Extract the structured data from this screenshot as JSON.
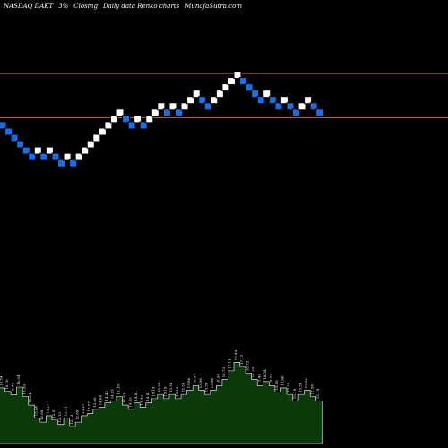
{
  "header": {
    "symbol": "NASDAQ DAKT",
    "change": "3%",
    "closing": "Closing",
    "chart_kind": "Daily data Renko charts",
    "site": "MunafaSutra.com"
  },
  "colors": {
    "background": "#000000",
    "up_brick": "#ffffff",
    "down_brick": "#1a6ee8",
    "brick_border": "#000000",
    "level_line": "#b5651d",
    "volume_fill": "#0a3a0a",
    "volume_stroke": "#ffffff",
    "volume_label": "#ffffff"
  },
  "chart_data": {
    "type": "renko",
    "ylim": [
      0,
      22
    ],
    "levels": [
      18.3,
      14.8
    ],
    "bricks": [
      {
        "level": 14.2,
        "dir": "down"
      },
      {
        "level": 13.7,
        "dir": "down"
      },
      {
        "level": 13.2,
        "dir": "down"
      },
      {
        "level": 12.7,
        "dir": "down"
      },
      {
        "level": 12.2,
        "dir": "down"
      },
      {
        "level": 11.7,
        "dir": "down"
      },
      {
        "level": 12.2,
        "dir": "up"
      },
      {
        "level": 11.7,
        "dir": "down"
      },
      {
        "level": 12.2,
        "dir": "up"
      },
      {
        "level": 11.7,
        "dir": "down"
      },
      {
        "level": 11.2,
        "dir": "down"
      },
      {
        "level": 11.7,
        "dir": "up"
      },
      {
        "level": 11.2,
        "dir": "down"
      },
      {
        "level": 11.7,
        "dir": "up"
      },
      {
        "level": 12.2,
        "dir": "up"
      },
      {
        "level": 12.7,
        "dir": "up"
      },
      {
        "level": 13.2,
        "dir": "up"
      },
      {
        "level": 13.7,
        "dir": "up"
      },
      {
        "level": 14.2,
        "dir": "up"
      },
      {
        "level": 14.7,
        "dir": "up"
      },
      {
        "level": 15.2,
        "dir": "up"
      },
      {
        "level": 14.7,
        "dir": "down"
      },
      {
        "level": 14.2,
        "dir": "down"
      },
      {
        "level": 14.7,
        "dir": "up"
      },
      {
        "level": 14.2,
        "dir": "down"
      },
      {
        "level": 14.7,
        "dir": "up"
      },
      {
        "level": 15.2,
        "dir": "up"
      },
      {
        "level": 15.7,
        "dir": "up"
      },
      {
        "level": 15.2,
        "dir": "down"
      },
      {
        "level": 15.7,
        "dir": "up"
      },
      {
        "level": 15.2,
        "dir": "down"
      },
      {
        "level": 15.7,
        "dir": "up"
      },
      {
        "level": 16.2,
        "dir": "up"
      },
      {
        "level": 16.7,
        "dir": "up"
      },
      {
        "level": 16.2,
        "dir": "down"
      },
      {
        "level": 15.7,
        "dir": "down"
      },
      {
        "level": 16.2,
        "dir": "up"
      },
      {
        "level": 16.7,
        "dir": "up"
      },
      {
        "level": 17.2,
        "dir": "up"
      },
      {
        "level": 17.7,
        "dir": "up"
      },
      {
        "level": 18.2,
        "dir": "up"
      },
      {
        "level": 17.7,
        "dir": "down"
      },
      {
        "level": 17.2,
        "dir": "down"
      },
      {
        "level": 16.7,
        "dir": "down"
      },
      {
        "level": 16.2,
        "dir": "down"
      },
      {
        "level": 16.7,
        "dir": "up"
      },
      {
        "level": 16.2,
        "dir": "down"
      },
      {
        "level": 15.7,
        "dir": "down"
      },
      {
        "level": 16.2,
        "dir": "up"
      },
      {
        "level": 15.7,
        "dir": "down"
      },
      {
        "level": 15.2,
        "dir": "down"
      },
      {
        "level": 15.7,
        "dir": "up"
      },
      {
        "level": 16.2,
        "dir": "up"
      },
      {
        "level": 15.7,
        "dir": "down"
      },
      {
        "level": 15.2,
        "dir": "down"
      }
    ],
    "volume": [
      {
        "v": 13.0,
        "label": "16.54"
      },
      {
        "v": 12.2,
        "label": "16.16"
      },
      {
        "v": 11.4,
        "label": "15.77"
      },
      {
        "v": 13.2,
        "label": "16.54"
      },
      {
        "v": 11.0,
        "label": "15.39"
      },
      {
        "v": 9.0,
        "label": "14.24"
      },
      {
        "v": 6.0,
        "label": "13.66"
      },
      {
        "v": 5.0,
        "label": "12.89"
      },
      {
        "v": 6.5,
        "label": "13.27"
      },
      {
        "v": 5.5,
        "label": "12.51"
      },
      {
        "v": 4.5,
        "label": "12.13"
      },
      {
        "v": 6.0,
        "label": "12.51"
      },
      {
        "v": 4.0,
        "label": "12.13"
      },
      {
        "v": 5.0,
        "label": "12.89"
      },
      {
        "v": 6.5,
        "label": "13.27"
      },
      {
        "v": 7.0,
        "label": "13.27"
      },
      {
        "v": 8.0,
        "label": "13.66"
      },
      {
        "v": 8.5,
        "label": "14.04"
      },
      {
        "v": 9.5,
        "label": "14.42"
      },
      {
        "v": 10.0,
        "label": "14.81"
      },
      {
        "v": 11.0,
        "label": "15.19"
      },
      {
        "v": 9.0,
        "label": "14.81"
      },
      {
        "v": 8.0,
        "label": "14.42"
      },
      {
        "v": 9.5,
        "label": "14.81"
      },
      {
        "v": 8.5,
        "label": "14.42"
      },
      {
        "v": 9.5,
        "label": "14.81"
      },
      {
        "v": 10.5,
        "label": "15.19"
      },
      {
        "v": 11.5,
        "label": "15.58"
      },
      {
        "v": 10.5,
        "label": "15.19"
      },
      {
        "v": 11.5,
        "label": "15.58"
      },
      {
        "v": 10.5,
        "label": "15.19"
      },
      {
        "v": 11.5,
        "label": "15.58"
      },
      {
        "v": 12.5,
        "label": "15.96"
      },
      {
        "v": 13.5,
        "label": "16.34"
      },
      {
        "v": 12.5,
        "label": "15.96"
      },
      {
        "v": 11.5,
        "label": "15.58"
      },
      {
        "v": 12.5,
        "label": "15.96"
      },
      {
        "v": 13.5,
        "label": "16.34"
      },
      {
        "v": 15.0,
        "label": "16.73"
      },
      {
        "v": 17.0,
        "label": "17.11"
      },
      {
        "v": 19.0,
        "label": "17.49"
      },
      {
        "v": 18.0,
        "label": "17.11"
      },
      {
        "v": 16.5,
        "label": "16.73"
      },
      {
        "v": 15.0,
        "label": "16.34"
      },
      {
        "v": 13.5,
        "label": "15.96"
      },
      {
        "v": 14.5,
        "label": "16.34"
      },
      {
        "v": 13.5,
        "label": "15.96"
      },
      {
        "v": 12.0,
        "label": "15.58"
      },
      {
        "v": 13.0,
        "label": "15.96"
      },
      {
        "v": 11.5,
        "label": "15.58"
      },
      {
        "v": 10.0,
        "label": "15.19"
      },
      {
        "v": 11.5,
        "label": "15.58"
      },
      {
        "v": 12.5,
        "label": "15.96"
      },
      {
        "v": 11.0,
        "label": "15.58"
      },
      {
        "v": 10.0,
        "label": "15.19"
      }
    ],
    "volume_max": 22
  }
}
